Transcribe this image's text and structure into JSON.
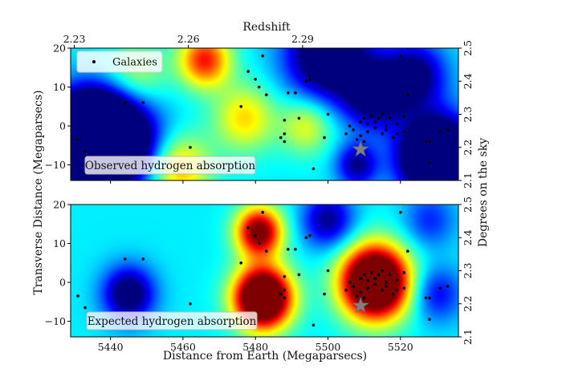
{
  "chart_data": {
    "type": "heatmap",
    "top_axis": {
      "label": "Redshift",
      "ticks": [
        {
          "value": 2.23,
          "label": "2.23"
        },
        {
          "value": 2.26,
          "label": "2.26"
        },
        {
          "value": 2.29,
          "label": "2.29"
        }
      ],
      "distance_at_tick": [
        5430,
        5461.5,
        5493
      ]
    },
    "xlabel": "Distance from Earth (Megaparsecs)",
    "ylabel": "Transverse Distance (Megaparsecs)",
    "right_ylabel": "Degrees on the sky",
    "xlim": [
      5429,
      5536
    ],
    "ylim": [
      -14,
      20
    ],
    "x_ticks": [
      {
        "value": 5440,
        "label": "5440"
      },
      {
        "value": 5460,
        "label": "5460"
      },
      {
        "value": 5480,
        "label": "5480"
      },
      {
        "value": 5500,
        "label": "5500"
      },
      {
        "value": 5520,
        "label": "5520"
      }
    ],
    "y_ticks": [
      {
        "value": -10,
        "label": "−10"
      },
      {
        "value": 0,
        "label": "0"
      },
      {
        "value": 10,
        "label": "10"
      },
      {
        "value": 20,
        "label": "20"
      }
    ],
    "right_ticks": [
      {
        "label": "2.1",
        "y": -14
      },
      {
        "label": "2.2",
        "y": -5.5
      },
      {
        "label": "2.3",
        "y": 3
      },
      {
        "label": "2.4",
        "y": 11.5
      },
      {
        "label": "2.5",
        "y": 20
      }
    ],
    "legend": {
      "label": "Galaxies",
      "position": "top-left"
    },
    "colormap": [
      "#00007f",
      "#0000ff",
      "#007fff",
      "#00ffff",
      "#7fff7f",
      "#ffff00",
      "#ff7f00",
      "#ff0000",
      "#7f0000"
    ],
    "panels": [
      {
        "label": "Observed hydrogen absorption",
        "field": [
          {
            "x": 5433,
            "y": -2,
            "s": 7,
            "a": -0.9
          },
          {
            "x": 5441,
            "y": -4,
            "s": 8,
            "a": -0.8
          },
          {
            "x": 5500,
            "y": 18,
            "s": 8,
            "a": -0.55
          },
          {
            "x": 5513,
            "y": 8,
            "s": 6,
            "a": -0.45
          },
          {
            "x": 5530,
            "y": -8,
            "s": 7,
            "a": -0.9
          },
          {
            "x": 5524,
            "y": 13,
            "s": 6,
            "a": -0.4
          },
          {
            "x": 5466,
            "y": 17,
            "s": 5,
            "a": 0.5
          },
          {
            "x": 5477,
            "y": 2,
            "s": 6,
            "a": 0.3
          },
          {
            "x": 5494,
            "y": 0,
            "s": 5,
            "a": 0.25
          },
          {
            "x": 5459,
            "y": -11,
            "s": 6,
            "a": 0.35
          },
          {
            "x": 5447,
            "y": 13,
            "s": 6,
            "a": 0.2
          },
          {
            "x": 5508,
            "y": -10,
            "s": 4,
            "a": -0.35
          }
        ]
      },
      {
        "label": "Expected hydrogen absorption",
        "field": [
          {
            "x": 5482,
            "y": -4,
            "s": 5.5,
            "a": 1.05
          },
          {
            "x": 5481,
            "y": 13,
            "s": 4.5,
            "a": 0.7
          },
          {
            "x": 5513,
            "y": 0,
            "s": 6.5,
            "a": 1.1
          },
          {
            "x": 5500,
            "y": 16,
            "s": 5,
            "a": -0.35
          },
          {
            "x": 5445,
            "y": -3,
            "s": 5,
            "a": -0.45
          },
          {
            "x": 5530,
            "y": -3,
            "s": 5,
            "a": -0.25
          },
          {
            "x": 5528,
            "y": 16,
            "s": 5,
            "a": -0.2
          }
        ]
      }
    ],
    "galaxies": [
      [
        5431,
        -3.5
      ],
      [
        5433,
        -6.5
      ],
      [
        5444,
        6
      ],
      [
        5449,
        6
      ],
      [
        5462,
        -5.5
      ],
      [
        5476,
        5
      ],
      [
        5478,
        14
      ],
      [
        5480,
        12
      ],
      [
        5481,
        10
      ],
      [
        5482,
        18
      ],
      [
        5483,
        8
      ],
      [
        5487,
        -3
      ],
      [
        5488,
        -2
      ],
      [
        5488,
        -4
      ],
      [
        5488,
        1.5
      ],
      [
        5489,
        8.5
      ],
      [
        5491,
        8.5
      ],
      [
        5492,
        2
      ],
      [
        5494,
        11.5
      ],
      [
        5495,
        12
      ],
      [
        5496,
        -11
      ],
      [
        5499,
        -3
      ],
      [
        5500,
        3
      ],
      [
        5505,
        -2
      ],
      [
        5506,
        0
      ],
      [
        5507,
        -1
      ],
      [
        5508,
        -3.5
      ],
      [
        5509,
        -2.5
      ],
      [
        5509,
        1
      ],
      [
        5510,
        -4
      ],
      [
        5510,
        2
      ],
      [
        5511,
        0.5
      ],
      [
        5511,
        -1.5
      ],
      [
        5512,
        2.5
      ],
      [
        5513,
        1
      ],
      [
        5513,
        -0.5
      ],
      [
        5514,
        2
      ],
      [
        5515,
        -2
      ],
      [
        5515,
        3
      ],
      [
        5516,
        0
      ],
      [
        5516,
        -1
      ],
      [
        5517,
        2
      ],
      [
        5518,
        -3
      ],
      [
        5519,
        0.5
      ],
      [
        5519,
        -2
      ],
      [
        5520,
        18
      ],
      [
        5521,
        -1.5
      ],
      [
        5521,
        2.5
      ],
      [
        5522,
        8
      ],
      [
        5527,
        -4
      ],
      [
        5528,
        -4
      ],
      [
        5528,
        -9.5
      ],
      [
        5531,
        -1.5
      ],
      [
        5533,
        -1
      ]
    ],
    "quasar": [
      5509,
      -6
    ]
  }
}
